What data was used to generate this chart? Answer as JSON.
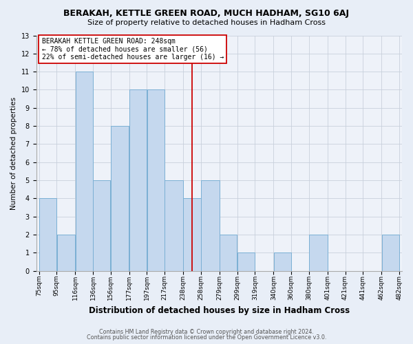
{
  "title": "BERAKAH, KETTLE GREEN ROAD, MUCH HADHAM, SG10 6AJ",
  "subtitle": "Size of property relative to detached houses in Hadham Cross",
  "xlabel": "Distribution of detached houses by size in Hadham Cross",
  "ylabel": "Number of detached properties",
  "bar_edges": [
    75,
    95,
    116,
    136,
    156,
    177,
    197,
    217,
    238,
    258,
    279,
    299,
    319,
    340,
    360,
    380,
    401,
    421,
    441,
    462,
    482
  ],
  "bar_heights": [
    4,
    2,
    11,
    5,
    8,
    10,
    10,
    5,
    4,
    5,
    2,
    1,
    0,
    1,
    0,
    2,
    0,
    0,
    0,
    2
  ],
  "bar_color": "#c5d8ee",
  "bar_edgecolor": "#7aafd4",
  "tick_labels": [
    "75sqm",
    "95sqm",
    "116sqm",
    "136sqm",
    "156sqm",
    "177sqm",
    "197sqm",
    "217sqm",
    "238sqm",
    "258sqm",
    "279sqm",
    "299sqm",
    "319sqm",
    "340sqm",
    "360sqm",
    "380sqm",
    "401sqm",
    "421sqm",
    "441sqm",
    "462sqm",
    "482sqm"
  ],
  "vline_x": 248,
  "vline_color": "#cc0000",
  "ylim": [
    0,
    13
  ],
  "yticks": [
    0,
    1,
    2,
    3,
    4,
    5,
    6,
    7,
    8,
    9,
    10,
    11,
    12,
    13
  ],
  "annotation_title": "BERAKAH KETTLE GREEN ROAD: 248sqm",
  "annotation_line1": "← 78% of detached houses are smaller (56)",
  "annotation_line2": "22% of semi-detached houses are larger (16) →",
  "footer1": "Contains HM Land Registry data © Crown copyright and database right 2024.",
  "footer2": "Contains public sector information licensed under the Open Government Licence v3.0.",
  "background_color": "#e8eef7",
  "plot_bg_color": "#eef2f9",
  "grid_color": "#c8d0dc",
  "title_fontsize": 9.0,
  "subtitle_fontsize": 8.0,
  "xlabel_fontsize": 8.5,
  "ylabel_fontsize": 7.5,
  "tick_fontsize": 6.5,
  "ann_fontsize": 7.0,
  "footer_fontsize": 5.8
}
